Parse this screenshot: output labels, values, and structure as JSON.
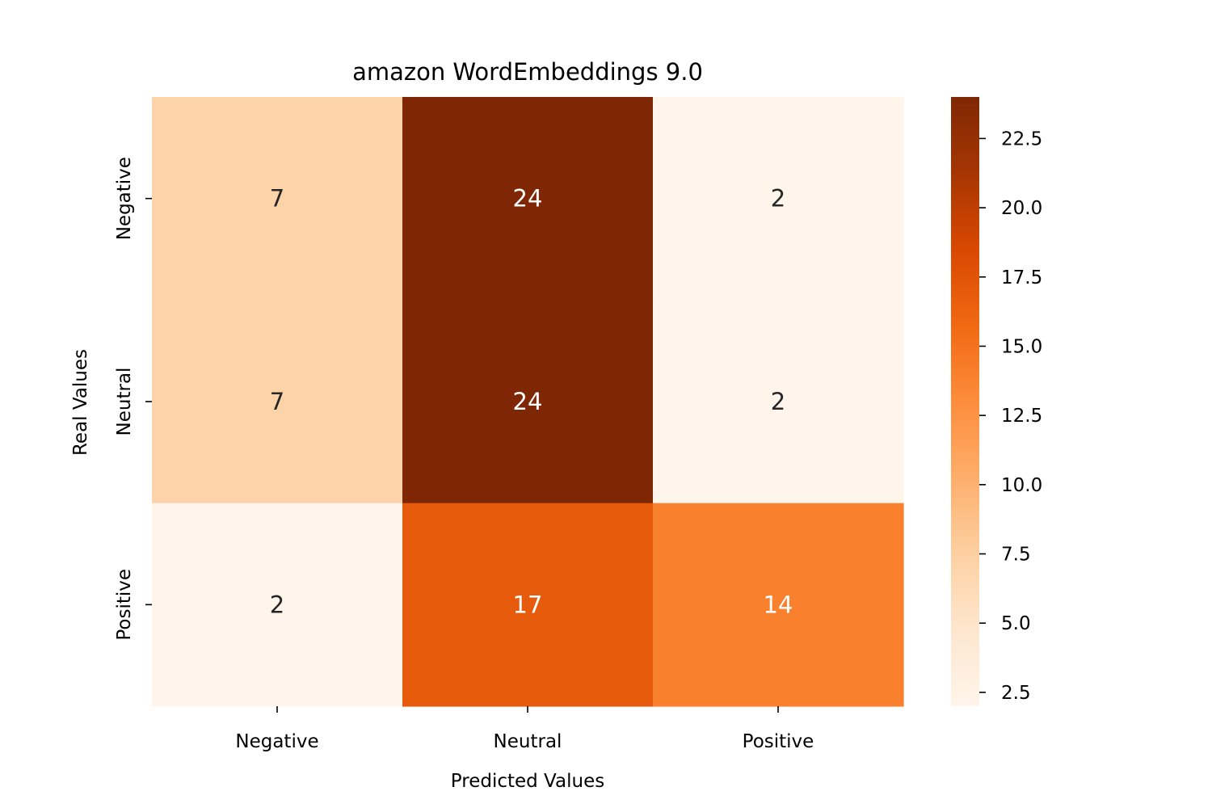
{
  "chart_data": {
    "type": "heatmap",
    "title": "amazon WordEmbeddings 9.0",
    "xlabel": "Predicted Values",
    "ylabel": "Real Values",
    "x_categories": [
      "Negative",
      "Neutral",
      "Positive"
    ],
    "y_categories": [
      "Negative",
      "Neutral",
      "Positive"
    ],
    "values": [
      [
        7,
        24,
        2
      ],
      [
        7,
        24,
        2
      ],
      [
        2,
        17,
        14
      ]
    ],
    "colormap": "Oranges",
    "colorbar": {
      "range": [
        2,
        24
      ],
      "ticks": [
        2.5,
        5.0,
        7.5,
        10.0,
        12.5,
        15.0,
        17.5,
        20.0,
        22.5
      ],
      "tick_labels": [
        "2.5",
        "5.0",
        "7.5",
        "10.0",
        "12.5",
        "15.0",
        "17.5",
        "20.0",
        "22.5"
      ]
    },
    "annotation_colors": {
      "dark_text": "#262626",
      "light_text": "#ffffff"
    }
  }
}
